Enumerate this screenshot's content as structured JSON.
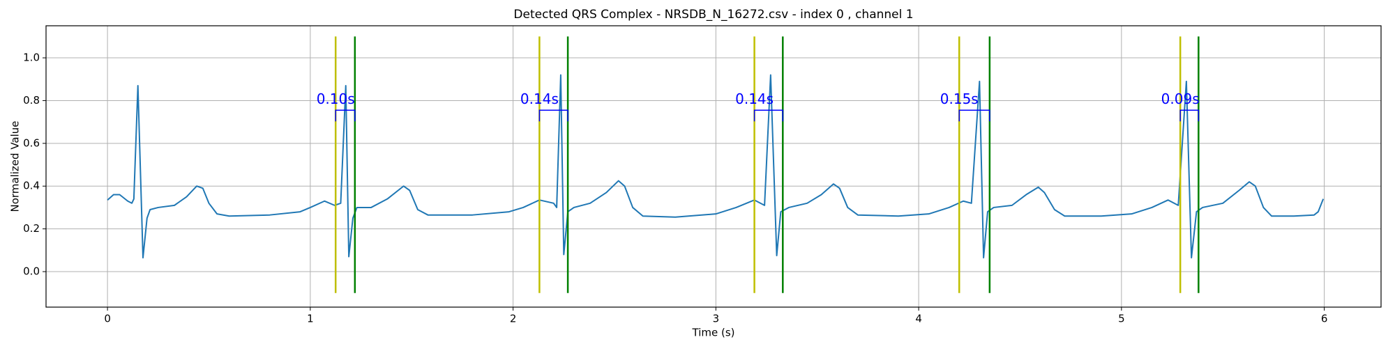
{
  "chart_data": {
    "type": "line",
    "title": "Detected QRS Complex - NRSDB_N_16272.csv - index 0 , channel 1",
    "xlabel": "Time (s)",
    "ylabel": "Normalized Value",
    "xlim": [
      -0.303,
      6.28
    ],
    "ylim": [
      -0.166,
      1.15
    ],
    "xticks": [
      0,
      1,
      2,
      3,
      4,
      5,
      6
    ],
    "yticks": [
      {
        "value": 0,
        "label": "0.0"
      },
      0.2,
      0.4,
      0.6,
      0.8,
      {
        "value": 1,
        "label": "1.0"
      }
    ],
    "grid": true,
    "series": [
      {
        "color": "#1f77b4",
        "x": [
          0,
          0.03,
          0.06,
          0.1,
          0.12,
          0.13,
          0.15,
          0.175,
          0.195,
          0.21,
          0.25,
          0.33,
          0.39,
          0.44,
          0.47,
          0.5,
          0.54,
          0.6,
          0.8,
          0.95,
          1.0,
          1.07,
          1.12,
          1.15,
          1.175,
          1.19,
          1.21,
          1.23,
          1.3,
          1.38,
          1.46,
          1.49,
          1.53,
          1.58,
          1.8,
          1.98,
          2.05,
          2.13,
          2.2,
          2.215,
          2.235,
          2.25,
          2.27,
          2.3,
          2.38,
          2.46,
          2.52,
          2.55,
          2.59,
          2.64,
          2.8,
          3.0,
          3.1,
          3.19,
          3.24,
          3.27,
          3.3,
          3.32,
          3.36,
          3.45,
          3.52,
          3.58,
          3.61,
          3.65,
          3.7,
          3.9,
          4.05,
          4.15,
          4.22,
          4.26,
          4.3,
          4.32,
          4.34,
          4.37,
          4.46,
          4.53,
          4.59,
          4.62,
          4.67,
          4.72,
          4.9,
          5.05,
          5.15,
          5.23,
          5.28,
          5.32,
          5.345,
          5.37,
          5.4,
          5.5,
          5.58,
          5.63,
          5.66,
          5.7,
          5.74,
          5.85,
          5.95,
          5.97,
          5.995
        ],
        "values": [
          0.335,
          0.36,
          0.36,
          0.33,
          0.32,
          0.34,
          0.87,
          0.065,
          0.25,
          0.29,
          0.3,
          0.31,
          0.35,
          0.4,
          0.39,
          0.32,
          0.27,
          0.26,
          0.265,
          0.28,
          0.3,
          0.33,
          0.31,
          0.32,
          0.87,
          0.07,
          0.25,
          0.3,
          0.3,
          0.34,
          0.4,
          0.38,
          0.29,
          0.265,
          0.265,
          0.28,
          0.3,
          0.335,
          0.32,
          0.3,
          0.92,
          0.08,
          0.28,
          0.3,
          0.32,
          0.37,
          0.425,
          0.4,
          0.3,
          0.26,
          0.255,
          0.27,
          0.3,
          0.335,
          0.31,
          0.92,
          0.075,
          0.28,
          0.3,
          0.32,
          0.36,
          0.41,
          0.39,
          0.3,
          0.265,
          0.26,
          0.27,
          0.3,
          0.33,
          0.32,
          0.89,
          0.065,
          0.28,
          0.3,
          0.31,
          0.36,
          0.395,
          0.37,
          0.29,
          0.26,
          0.26,
          0.27,
          0.3,
          0.335,
          0.31,
          0.89,
          0.065,
          0.28,
          0.3,
          0.32,
          0.38,
          0.42,
          0.4,
          0.3,
          0.26,
          0.26,
          0.265,
          0.28,
          0.34
        ]
      }
    ],
    "intervals": {
      "onsets": [
        1.125,
        2.13,
        3.19,
        4.2,
        5.29
      ],
      "offsets": [
        1.22,
        2.27,
        3.33,
        4.35,
        5.38
      ],
      "onset_color": "#bfbf00",
      "offset_color": "green",
      "vline_range": [
        -0.1,
        1.1
      ],
      "values": [
        0.1,
        0.14,
        0.14,
        0.15,
        0.09
      ],
      "value_labels": [
        "0.10s",
        "0.14s",
        "0.14s",
        "0.15s",
        "0.09s"
      ],
      "bracket_y": 0.755,
      "color": "blue"
    }
  }
}
